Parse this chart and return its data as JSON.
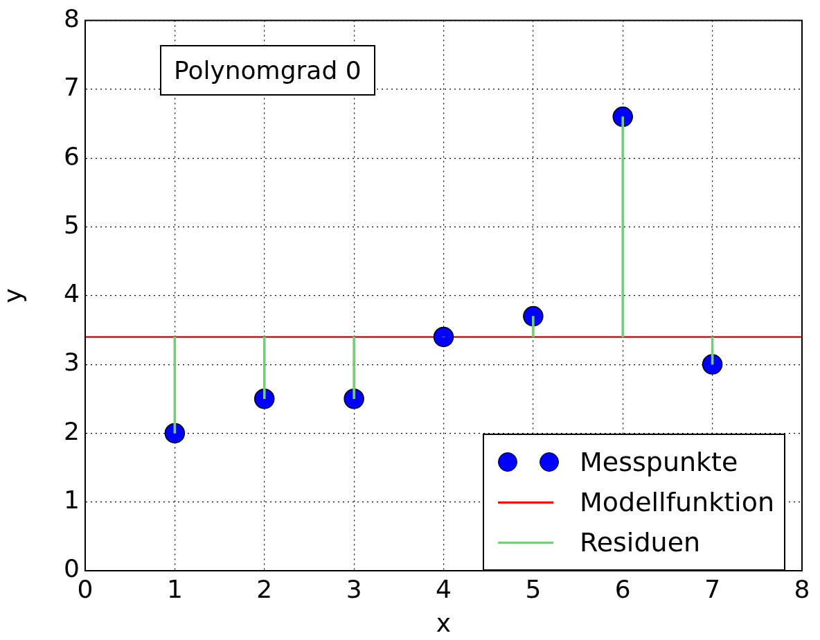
{
  "chart_data": {
    "type": "scatter",
    "xlabel": "x",
    "ylabel": "y",
    "xlim": [
      0,
      8
    ],
    "ylim": [
      0,
      8
    ],
    "xticks": [
      0,
      1,
      2,
      3,
      4,
      5,
      6,
      7,
      8
    ],
    "yticks": [
      0,
      1,
      2,
      3,
      4,
      5,
      6,
      7,
      8
    ],
    "grid": true,
    "legend": "bottom right",
    "annotations": [
      "Polynomgrad 0"
    ],
    "series": [
      {
        "name": "Messpunkte",
        "marker": "circle",
        "color": "#0000ff",
        "x": [
          1,
          2,
          3,
          4,
          5,
          6,
          7
        ],
        "values": [
          2.0,
          2.5,
          2.5,
          3.4,
          3.7,
          6.6,
          3.0
        ]
      },
      {
        "name": "Modellfunktion",
        "type": "line",
        "color": "#ff0000",
        "x": [
          0,
          8
        ],
        "values": [
          3.4,
          3.4
        ]
      },
      {
        "name": "Residuen",
        "type": "bar",
        "color": "#77cc77",
        "x": [
          1,
          2,
          3,
          4,
          5,
          6,
          7
        ],
        "base": [
          3.4,
          3.4,
          3.4,
          3.4,
          3.4,
          3.4,
          3.4
        ],
        "values": [
          -1.4,
          -0.9,
          -0.9,
          0,
          0.3,
          3.2,
          -0.4
        ]
      }
    ]
  }
}
